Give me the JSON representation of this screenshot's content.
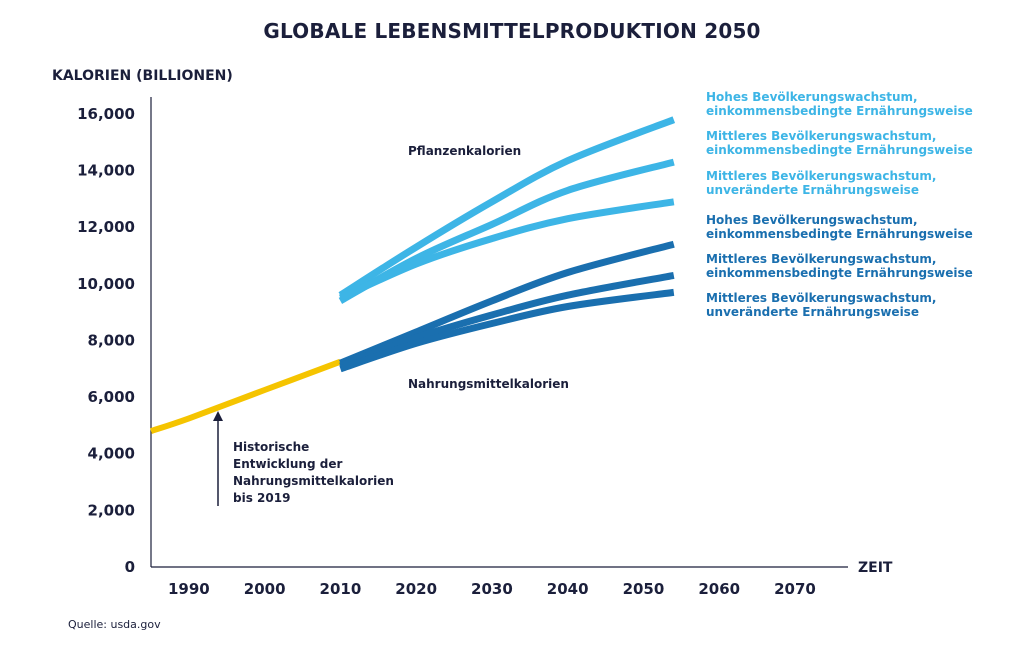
{
  "title": "GLOBALE LEBENSMITTELPRODUKTION 2050",
  "source": "Quelle: usda.gov",
  "chart_data": {
    "type": "line",
    "title": "GLOBALE LEBENSMITTELPRODUKTION 2050",
    "ylabel": "KALORIEN (BILLIONEN)",
    "xlabel": "ZEIT",
    "xlim": [
      1985,
      2077
    ],
    "ylim": [
      0,
      16600
    ],
    "yticks": [
      "0",
      "2,000",
      "4,000",
      "6,000",
      "8,000",
      "10,000",
      "12,000",
      "14,000",
      "16,000"
    ],
    "ytick_values": [
      0,
      2000,
      4000,
      6000,
      8000,
      10000,
      12000,
      14000,
      16000
    ],
    "xticks": [
      "1990",
      "2000",
      "2010",
      "2020",
      "2030",
      "2040",
      "2050",
      "2060",
      "2070"
    ],
    "xtick_values": [
      1990,
      2000,
      2010,
      2020,
      2030,
      2040,
      2050,
      2060,
      2070
    ],
    "grid": false,
    "group_labels": {
      "plant": "Pflanzenkalorien",
      "food": "Nahrungsmittelkalorien"
    },
    "annotation": [
      "Historische",
      "Entwicklung der",
      "Nahrungsmittelkalorien",
      "bis 2019"
    ],
    "historical": {
      "color": "#F5C400",
      "points": [
        [
          1985,
          4800
        ],
        [
          1990,
          5250
        ],
        [
          2000,
          6250
        ],
        [
          2010,
          7250
        ]
      ]
    },
    "series": [
      {
        "group": "plant",
        "color": "#3DB5E6",
        "label": [
          "Hohes Bevölkerungswachstum,",
          "einkommensbedingte Ernährungsweise"
        ],
        "points": [
          [
            2010,
            9600
          ],
          [
            2020,
            11300
          ],
          [
            2030,
            12900
          ],
          [
            2040,
            14350
          ],
          [
            2054,
            15800
          ]
        ]
      },
      {
        "group": "plant",
        "color": "#3DB5E6",
        "label": [
          "Mittleres Bevölkerungswachstum,",
          "einkommensbedingte Ernährungsweise"
        ],
        "points": [
          [
            2010,
            9400
          ],
          [
            2020,
            10900
          ],
          [
            2030,
            12100
          ],
          [
            2040,
            13300
          ],
          [
            2054,
            14300
          ]
        ]
      },
      {
        "group": "plant",
        "color": "#3DB5E6",
        "label": [
          "Mittleres Bevölkerungswachstum,",
          "unveränderte Ernährungsweise"
        ],
        "points": [
          [
            2010,
            9500
          ],
          [
            2020,
            10700
          ],
          [
            2030,
            11600
          ],
          [
            2040,
            12300
          ],
          [
            2054,
            12900
          ]
        ]
      },
      {
        "group": "food",
        "color": "#1A6FAF",
        "label": [
          "Hohes Bevölkerungswachstum,",
          "einkommensbedingte Ernährungsweise"
        ],
        "points": [
          [
            2010,
            7200
          ],
          [
            2020,
            8300
          ],
          [
            2030,
            9400
          ],
          [
            2040,
            10400
          ],
          [
            2054,
            11400
          ]
        ]
      },
      {
        "group": "food",
        "color": "#1A6FAF",
        "label": [
          "Mittleres Bevölkerungswachstum,",
          "einkommensbedingte Ernährungsweise"
        ],
        "points": [
          [
            2010,
            7100
          ],
          [
            2020,
            8100
          ],
          [
            2030,
            8900
          ],
          [
            2040,
            9600
          ],
          [
            2054,
            10300
          ]
        ]
      },
      {
        "group": "food",
        "color": "#1A6FAF",
        "label": [
          "Mittleres Bevölkerungswachstum,",
          "unveränderte Ernährungsweise"
        ],
        "points": [
          [
            2010,
            7000
          ],
          [
            2020,
            7900
          ],
          [
            2030,
            8600
          ],
          [
            2040,
            9200
          ],
          [
            2054,
            9700
          ]
        ]
      }
    ]
  }
}
